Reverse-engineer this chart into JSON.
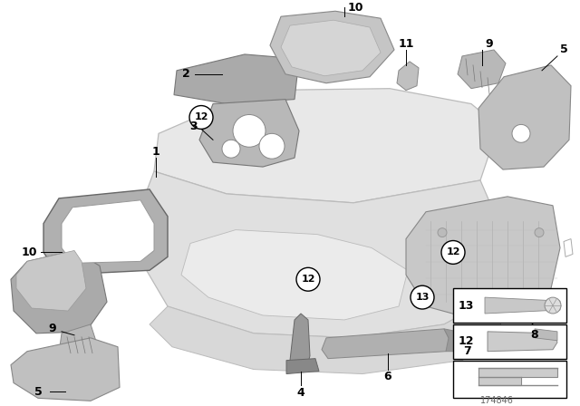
{
  "bg_color": "#ffffff",
  "part_number": "174846",
  "body_color": "#e8e8e8",
  "body_edge": "#bbbbbb",
  "part_color_dark": "#aaaaaa",
  "part_color_mid": "#c0c0c0",
  "part_color_light": "#d5d5d5"
}
